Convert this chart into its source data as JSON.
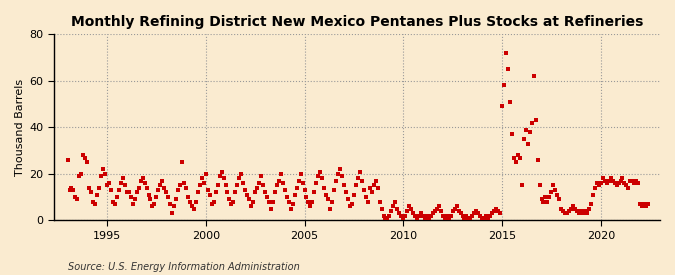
{
  "title": "Monthly Refining District New Mexico Pentanes Plus Stocks at Refineries",
  "ylabel": "Thousand Barrels",
  "source": "Source: U.S. Energy Information Administration",
  "background_color": "#faebd0",
  "plot_bg_color": "#fdf5e6",
  "marker_color": "#cc0000",
  "xlim": [
    1992.3,
    2023.0
  ],
  "ylim": [
    0,
    80
  ],
  "yticks": [
    0,
    20,
    40,
    60,
    80
  ],
  "xticks": [
    1995,
    2000,
    2005,
    2010,
    2015,
    2020
  ],
  "data": [
    [
      1993.0,
      26
    ],
    [
      1993.1,
      13
    ],
    [
      1993.2,
      14
    ],
    [
      1993.3,
      13
    ],
    [
      1993.4,
      10
    ],
    [
      1993.5,
      9
    ],
    [
      1993.6,
      19
    ],
    [
      1993.7,
      20
    ],
    [
      1993.8,
      28
    ],
    [
      1993.9,
      27
    ],
    [
      1994.0,
      25
    ],
    [
      1994.1,
      14
    ],
    [
      1994.2,
      12
    ],
    [
      1994.3,
      8
    ],
    [
      1994.4,
      7
    ],
    [
      1994.5,
      11
    ],
    [
      1994.6,
      14
    ],
    [
      1994.7,
      19
    ],
    [
      1994.8,
      22
    ],
    [
      1994.9,
      20
    ],
    [
      1995.0,
      15
    ],
    [
      1995.1,
      16
    ],
    [
      1995.2,
      13
    ],
    [
      1995.3,
      8
    ],
    [
      1995.4,
      7
    ],
    [
      1995.5,
      10
    ],
    [
      1995.6,
      13
    ],
    [
      1995.7,
      16
    ],
    [
      1995.8,
      18
    ],
    [
      1995.9,
      15
    ],
    [
      1996.0,
      12
    ],
    [
      1996.1,
      12
    ],
    [
      1996.2,
      10
    ],
    [
      1996.3,
      7
    ],
    [
      1996.4,
      9
    ],
    [
      1996.5,
      12
    ],
    [
      1996.6,
      14
    ],
    [
      1996.7,
      17
    ],
    [
      1996.8,
      18
    ],
    [
      1996.9,
      16
    ],
    [
      1997.0,
      14
    ],
    [
      1997.1,
      11
    ],
    [
      1997.2,
      9
    ],
    [
      1997.3,
      6
    ],
    [
      1997.4,
      7
    ],
    [
      1997.5,
      10
    ],
    [
      1997.6,
      13
    ],
    [
      1997.7,
      15
    ],
    [
      1997.8,
      17
    ],
    [
      1997.9,
      14
    ],
    [
      1998.0,
      12
    ],
    [
      1998.1,
      10
    ],
    [
      1998.2,
      7
    ],
    [
      1998.3,
      3
    ],
    [
      1998.4,
      6
    ],
    [
      1998.5,
      9
    ],
    [
      1998.6,
      13
    ],
    [
      1998.7,
      15
    ],
    [
      1998.8,
      25
    ],
    [
      1998.9,
      16
    ],
    [
      1999.0,
      14
    ],
    [
      1999.1,
      10
    ],
    [
      1999.2,
      8
    ],
    [
      1999.3,
      6
    ],
    [
      1999.4,
      5
    ],
    [
      1999.5,
      8
    ],
    [
      1999.6,
      12
    ],
    [
      1999.7,
      15
    ],
    [
      1999.8,
      18
    ],
    [
      1999.9,
      16
    ],
    [
      2000.0,
      20
    ],
    [
      2000.1,
      13
    ],
    [
      2000.2,
      11
    ],
    [
      2000.3,
      7
    ],
    [
      2000.4,
      8
    ],
    [
      2000.5,
      12
    ],
    [
      2000.6,
      15
    ],
    [
      2000.7,
      19
    ],
    [
      2000.8,
      21
    ],
    [
      2000.9,
      18
    ],
    [
      2001.0,
      15
    ],
    [
      2001.1,
      12
    ],
    [
      2001.2,
      9
    ],
    [
      2001.3,
      7
    ],
    [
      2001.4,
      8
    ],
    [
      2001.5,
      12
    ],
    [
      2001.6,
      15
    ],
    [
      2001.7,
      18
    ],
    [
      2001.8,
      20
    ],
    [
      2001.9,
      16
    ],
    [
      2002.0,
      13
    ],
    [
      2002.1,
      11
    ],
    [
      2002.2,
      9
    ],
    [
      2002.3,
      6
    ],
    [
      2002.4,
      8
    ],
    [
      2002.5,
      12
    ],
    [
      2002.6,
      14
    ],
    [
      2002.7,
      16
    ],
    [
      2002.8,
      19
    ],
    [
      2002.9,
      15
    ],
    [
      2003.0,
      12
    ],
    [
      2003.1,
      10
    ],
    [
      2003.2,
      8
    ],
    [
      2003.3,
      5
    ],
    [
      2003.4,
      8
    ],
    [
      2003.5,
      12
    ],
    [
      2003.6,
      15
    ],
    [
      2003.7,
      17
    ],
    [
      2003.8,
      20
    ],
    [
      2003.9,
      16
    ],
    [
      2004.0,
      13
    ],
    [
      2004.1,
      10
    ],
    [
      2004.2,
      8
    ],
    [
      2004.3,
      5
    ],
    [
      2004.4,
      7
    ],
    [
      2004.5,
      11
    ],
    [
      2004.6,
      14
    ],
    [
      2004.7,
      17
    ],
    [
      2004.8,
      20
    ],
    [
      2004.9,
      16
    ],
    [
      2005.0,
      13
    ],
    [
      2005.1,
      10
    ],
    [
      2005.2,
      8
    ],
    [
      2005.3,
      6
    ],
    [
      2005.4,
      8
    ],
    [
      2005.5,
      12
    ],
    [
      2005.6,
      16
    ],
    [
      2005.7,
      19
    ],
    [
      2005.8,
      21
    ],
    [
      2005.9,
      18
    ],
    [
      2006.0,
      14
    ],
    [
      2006.1,
      11
    ],
    [
      2006.2,
      9
    ],
    [
      2006.3,
      5
    ],
    [
      2006.4,
      8
    ],
    [
      2006.5,
      13
    ],
    [
      2006.6,
      17
    ],
    [
      2006.7,
      20
    ],
    [
      2006.8,
      22
    ],
    [
      2006.9,
      19
    ],
    [
      2007.0,
      15
    ],
    [
      2007.1,
      12
    ],
    [
      2007.2,
      9
    ],
    [
      2007.3,
      6
    ],
    [
      2007.4,
      7
    ],
    [
      2007.5,
      11
    ],
    [
      2007.6,
      15
    ],
    [
      2007.7,
      18
    ],
    [
      2007.8,
      21
    ],
    [
      2007.9,
      17
    ],
    [
      2008.0,
      13
    ],
    [
      2008.1,
      10
    ],
    [
      2008.2,
      8
    ],
    [
      2008.3,
      14
    ],
    [
      2008.4,
      12
    ],
    [
      2008.5,
      15
    ],
    [
      2008.6,
      17
    ],
    [
      2008.7,
      14
    ],
    [
      2008.8,
      8
    ],
    [
      2008.9,
      5
    ],
    [
      2009.0,
      2
    ],
    [
      2009.1,
      1
    ],
    [
      2009.2,
      1
    ],
    [
      2009.3,
      2
    ],
    [
      2009.4,
      4
    ],
    [
      2009.5,
      6
    ],
    [
      2009.6,
      8
    ],
    [
      2009.7,
      5
    ],
    [
      2009.8,
      3
    ],
    [
      2009.9,
      2
    ],
    [
      2010.0,
      1
    ],
    [
      2010.1,
      2
    ],
    [
      2010.2,
      4
    ],
    [
      2010.3,
      6
    ],
    [
      2010.4,
      5
    ],
    [
      2010.5,
      3
    ],
    [
      2010.6,
      2
    ],
    [
      2010.7,
      1
    ],
    [
      2010.8,
      2
    ],
    [
      2010.9,
      3
    ],
    [
      2011.0,
      2
    ],
    [
      2011.1,
      1
    ],
    [
      2011.2,
      2
    ],
    [
      2011.3,
      1
    ],
    [
      2011.4,
      2
    ],
    [
      2011.5,
      3
    ],
    [
      2011.6,
      4
    ],
    [
      2011.7,
      5
    ],
    [
      2011.8,
      6
    ],
    [
      2011.9,
      4
    ],
    [
      2012.0,
      2
    ],
    [
      2012.1,
      1
    ],
    [
      2012.2,
      2
    ],
    [
      2012.3,
      1
    ],
    [
      2012.4,
      2
    ],
    [
      2012.5,
      4
    ],
    [
      2012.6,
      5
    ],
    [
      2012.7,
      6
    ],
    [
      2012.8,
      4
    ],
    [
      2012.9,
      3
    ],
    [
      2013.0,
      2
    ],
    [
      2013.1,
      1
    ],
    [
      2013.2,
      2
    ],
    [
      2013.3,
      1
    ],
    [
      2013.4,
      1
    ],
    [
      2013.5,
      2
    ],
    [
      2013.6,
      3
    ],
    [
      2013.7,
      4
    ],
    [
      2013.8,
      3
    ],
    [
      2013.9,
      2
    ],
    [
      2014.0,
      1
    ],
    [
      2014.1,
      1
    ],
    [
      2014.2,
      2
    ],
    [
      2014.3,
      1
    ],
    [
      2014.4,
      2
    ],
    [
      2014.5,
      3
    ],
    [
      2014.6,
      4
    ],
    [
      2014.7,
      5
    ],
    [
      2014.8,
      4
    ],
    [
      2014.9,
      3
    ],
    [
      2015.0,
      49
    ],
    [
      2015.1,
      58
    ],
    [
      2015.2,
      72
    ],
    [
      2015.3,
      65
    ],
    [
      2015.4,
      51
    ],
    [
      2015.5,
      37
    ],
    [
      2015.6,
      27
    ],
    [
      2015.7,
      25
    ],
    [
      2015.8,
      28
    ],
    [
      2015.9,
      27
    ],
    [
      2016.0,
      15
    ],
    [
      2016.1,
      35
    ],
    [
      2016.2,
      39
    ],
    [
      2016.3,
      33
    ],
    [
      2016.4,
      38
    ],
    [
      2016.5,
      42
    ],
    [
      2016.6,
      62
    ],
    [
      2016.7,
      43
    ],
    [
      2016.8,
      26
    ],
    [
      2016.9,
      15
    ],
    [
      2017.0,
      9
    ],
    [
      2017.1,
      8
    ],
    [
      2017.2,
      10
    ],
    [
      2017.3,
      8
    ],
    [
      2017.4,
      10
    ],
    [
      2017.5,
      12
    ],
    [
      2017.6,
      15
    ],
    [
      2017.7,
      13
    ],
    [
      2017.8,
      11
    ],
    [
      2017.9,
      9
    ],
    [
      2018.0,
      5
    ],
    [
      2018.1,
      4
    ],
    [
      2018.2,
      3
    ],
    [
      2018.3,
      3
    ],
    [
      2018.4,
      4
    ],
    [
      2018.5,
      5
    ],
    [
      2018.6,
      6
    ],
    [
      2018.7,
      5
    ],
    [
      2018.8,
      4
    ],
    [
      2018.9,
      3
    ],
    [
      2019.0,
      4
    ],
    [
      2019.1,
      3
    ],
    [
      2019.2,
      4
    ],
    [
      2019.3,
      3
    ],
    [
      2019.4,
      5
    ],
    [
      2019.5,
      7
    ],
    [
      2019.6,
      11
    ],
    [
      2019.7,
      14
    ],
    [
      2019.8,
      16
    ],
    [
      2019.9,
      15
    ],
    [
      2020.0,
      16
    ],
    [
      2020.1,
      18
    ],
    [
      2020.2,
      17
    ],
    [
      2020.3,
      16
    ],
    [
      2020.4,
      17
    ],
    [
      2020.5,
      18
    ],
    [
      2020.6,
      17
    ],
    [
      2020.7,
      16
    ],
    [
      2020.8,
      15
    ],
    [
      2020.9,
      16
    ],
    [
      2021.0,
      17
    ],
    [
      2021.1,
      18
    ],
    [
      2021.2,
      16
    ],
    [
      2021.3,
      15
    ],
    [
      2021.4,
      14
    ],
    [
      2021.5,
      17
    ],
    [
      2021.6,
      17
    ],
    [
      2021.7,
      16
    ],
    [
      2021.8,
      17
    ],
    [
      2021.9,
      16
    ],
    [
      2022.0,
      7
    ],
    [
      2022.1,
      6
    ],
    [
      2022.2,
      7
    ],
    [
      2022.3,
      6
    ],
    [
      2022.4,
      7
    ]
  ]
}
